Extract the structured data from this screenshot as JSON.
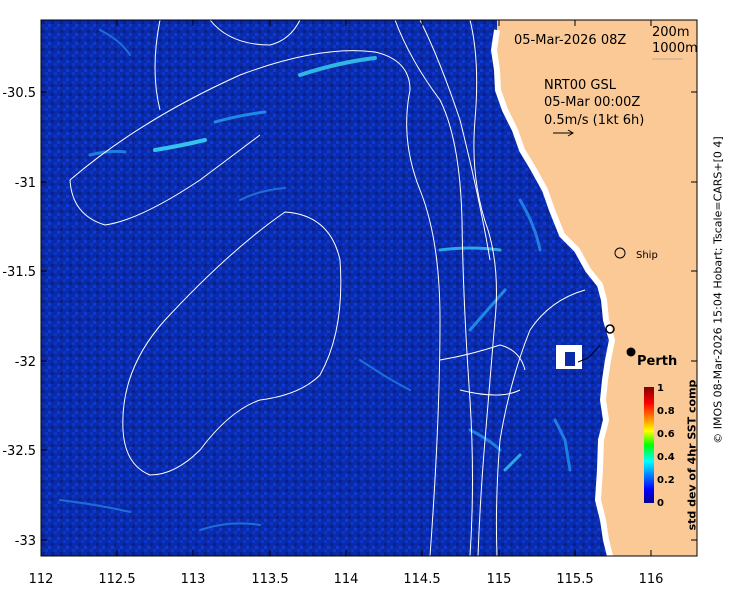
{
  "map": {
    "date_label": "05-Mar-2026 08Z",
    "legend_contours": [
      "200m",
      "1000m"
    ],
    "current_title": "NRT00 GSL",
    "current_time": "05-Mar 00:00Z",
    "current_scale": "0.5m/s (1kt 6h)",
    "ship_label": "Ship",
    "city_label": "Perth",
    "x_ticks": [
      "112",
      "112.5",
      "113",
      "113.5",
      "114",
      "114.5",
      "115",
      "115.5",
      "116"
    ],
    "y_ticks": [
      "-30.5",
      "-31",
      "-31.5",
      "-32",
      "-32.5",
      "-33"
    ],
    "credit": "© IMOS 08-Mar-2026 15:04 Hobart; Tscale=CARS+[0 4]",
    "colors": {
      "ocean": "#0a2aa8",
      "land": "#fbc996",
      "coast_strip": "#ffffff"
    }
  },
  "colorbar": {
    "title": "std dev of 4hr SST comp",
    "ticks": [
      "1",
      "0.8",
      "0.6",
      "0.4",
      "0.2",
      "0"
    ],
    "range": [
      0,
      1
    ]
  }
}
